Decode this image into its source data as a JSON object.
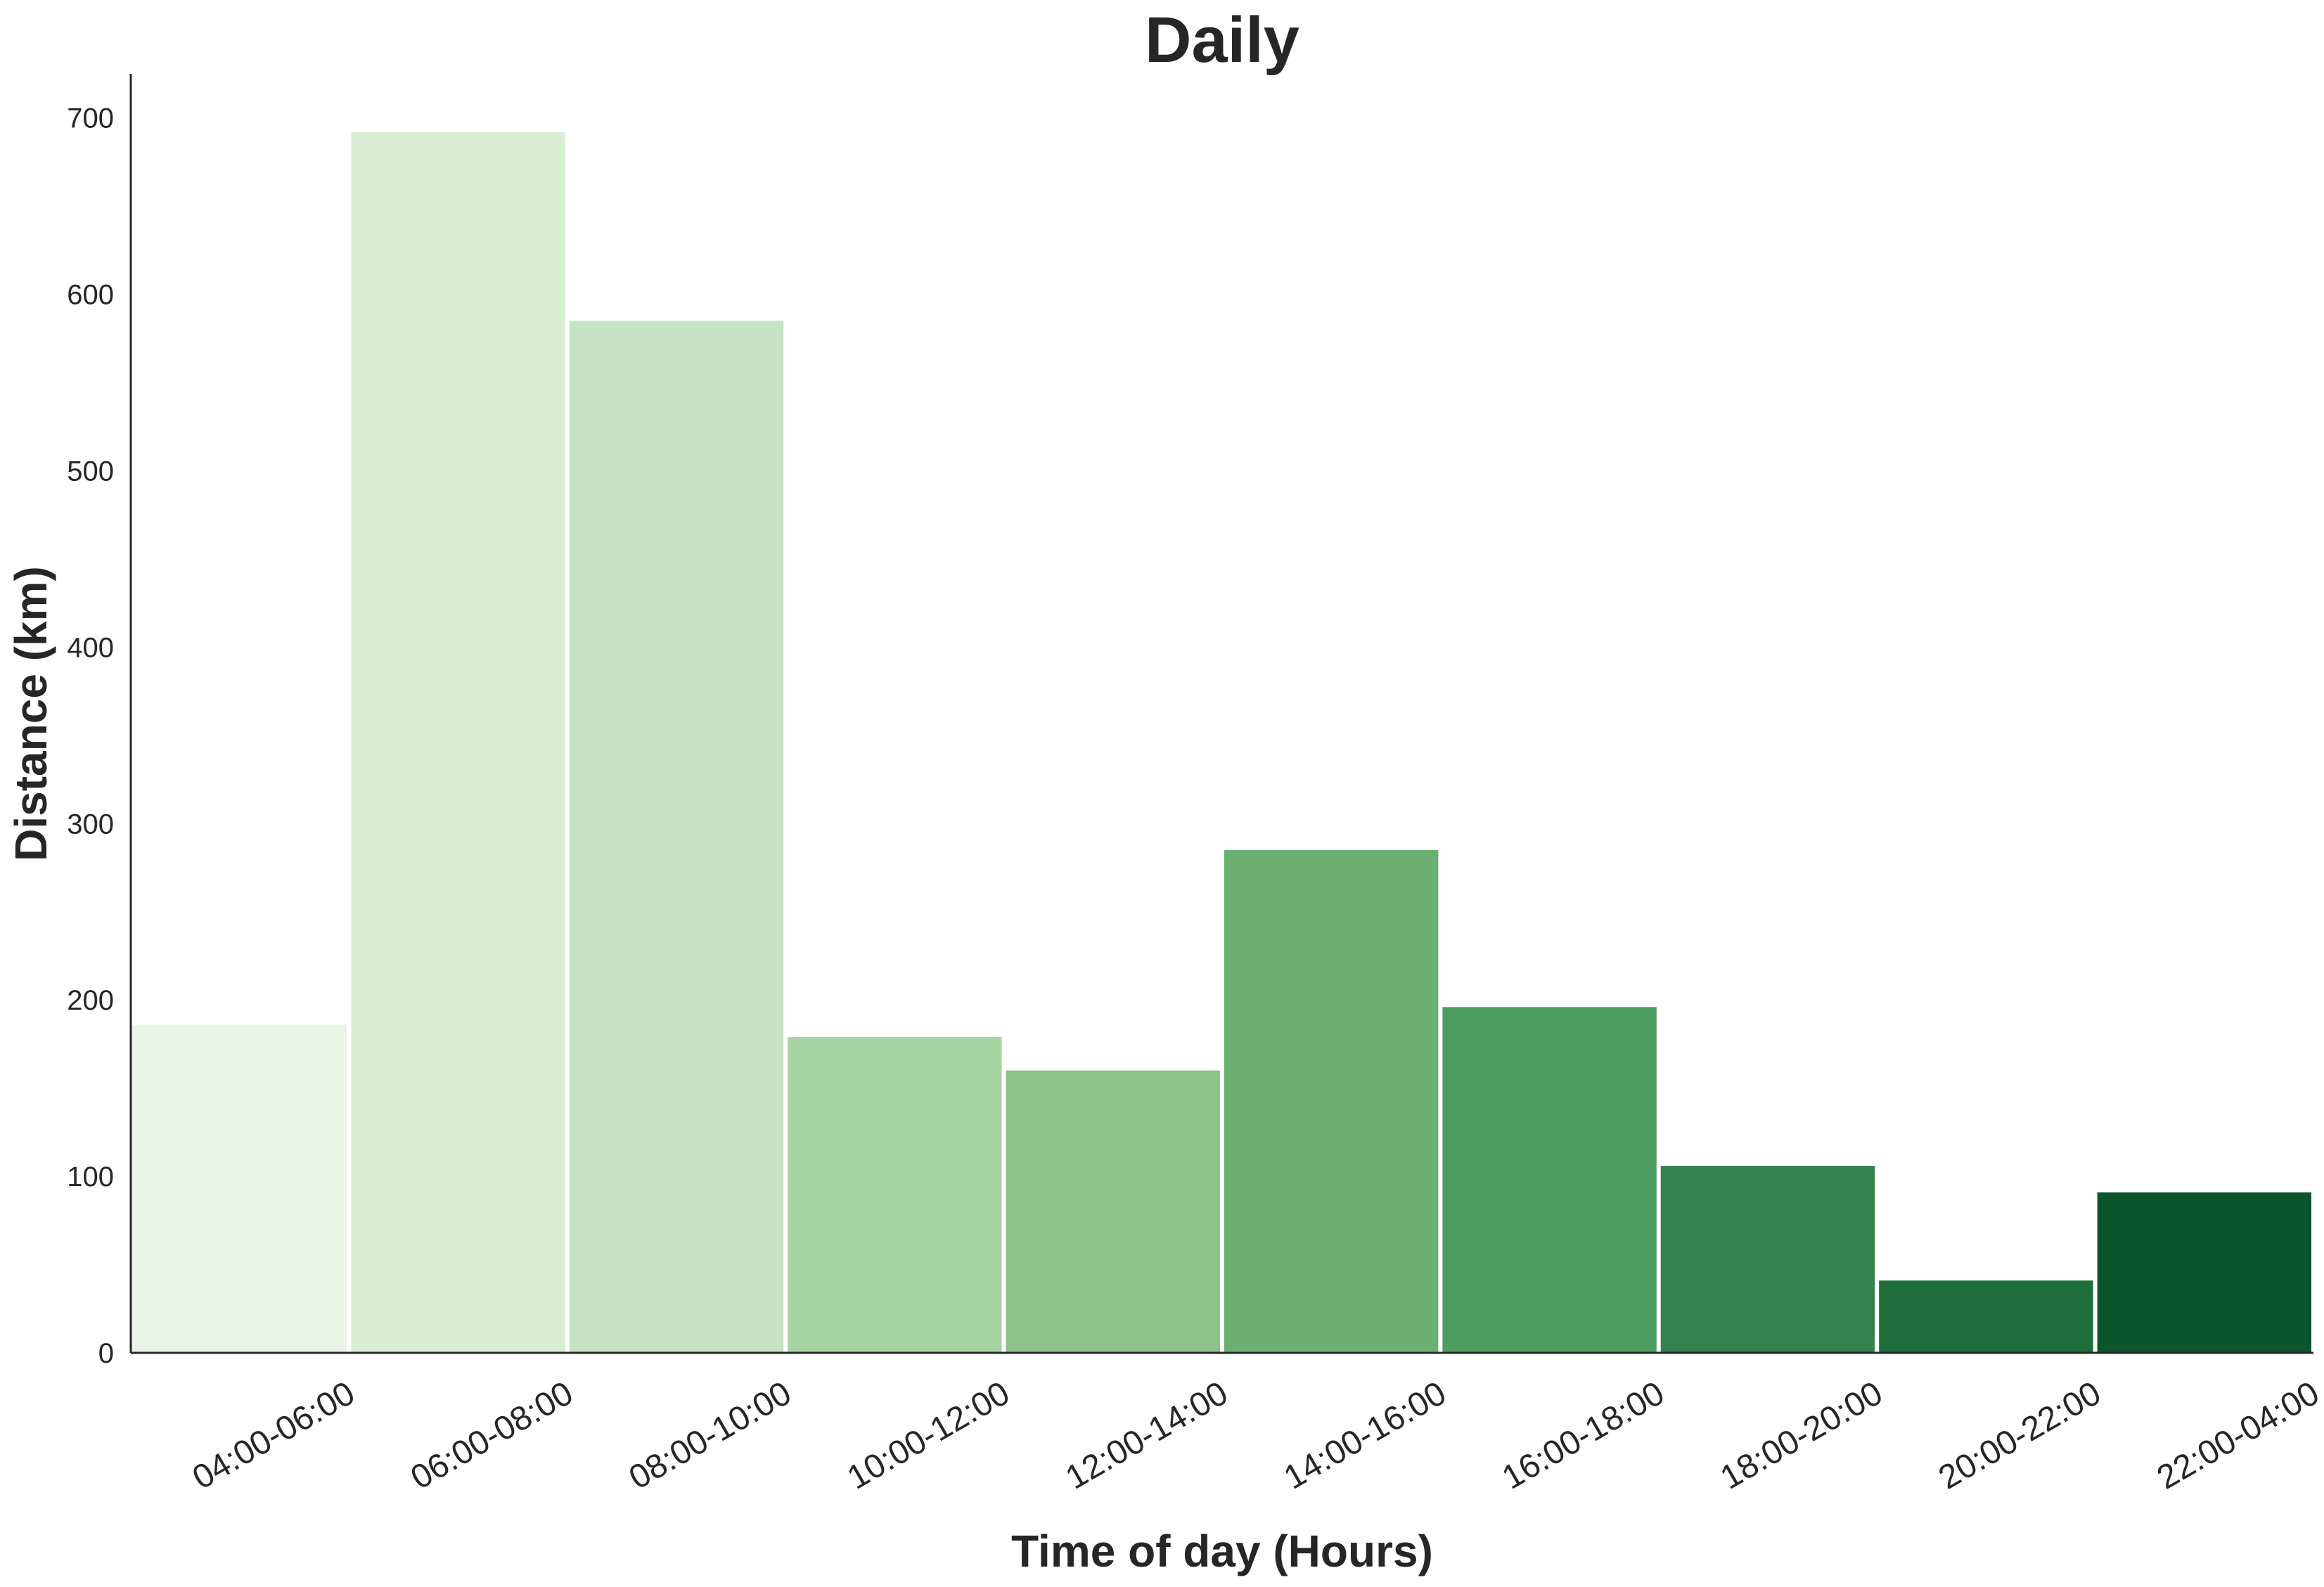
{
  "chart_data": {
    "type": "bar",
    "title": "Daily",
    "xlabel": "Time of day  (Hours)",
    "ylabel": "Distance (km)",
    "categories": [
      "04:00-06:00",
      "06:00-08:00",
      "08:00-10:00",
      "10:00-12:00",
      "12:00-14:00",
      "14:00-16:00",
      "16:00-18:00",
      "18:00-20:00",
      "20:00-22:00",
      "22:00-04:00"
    ],
    "values": [
      186,
      692,
      585,
      179,
      160,
      285,
      196,
      106,
      41,
      91
    ],
    "colors": [
      "#e9f5e6",
      "#d8edd4",
      "#c5e3c3",
      "#a8d4a3",
      "#8dc28a",
      "#6bb072",
      "#4d9c60",
      "#34834f",
      "#1d6e3b",
      "#0c552c"
    ],
    "ylim": [
      0,
      725
    ],
    "yticks": [
      0,
      100,
      200,
      300,
      400,
      500,
      600,
      700
    ],
    "grid": false,
    "legend": "none"
  }
}
